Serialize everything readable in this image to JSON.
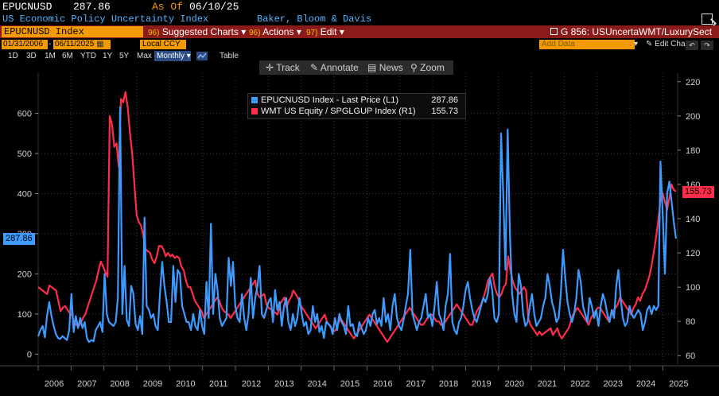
{
  "header": {
    "ticker": "EPUCNUSD",
    "last_price": "287.86",
    "as_of_label": "As Of",
    "as_of_date": "06/10/25",
    "title": "US Economic Policy Uncertainty Index",
    "source": "Baker, Bloom & Davis"
  },
  "menubar": {
    "security": "EPUCNUSD Index",
    "suggested": "Suggested Charts",
    "suggested_num": "96)",
    "actions": "Actions",
    "actions_num": "96)",
    "edit": "Edit",
    "edit_num": "97)",
    "chart_id": "G 856: USUncertaWMT/LuxurySect"
  },
  "datebar": {
    "start_date": "01/31/2006",
    "end_date": "06/11/2025",
    "currency": "Local CCY",
    "add_data": "Add Data",
    "edit_chart": "Edit Chart"
  },
  "ranges": [
    "1D",
    "3D",
    "1M",
    "6M",
    "YTD",
    "1Y",
    "5Y",
    "Max"
  ],
  "frequency": "Monthly",
  "table_label": "Table",
  "toolbar": {
    "track": "Track",
    "annotate": "Annotate",
    "news": "News",
    "zoom": "Zoom"
  },
  "colors": {
    "series1": "#3d9bff",
    "series2": "#ff2d4a",
    "accent": "#f39a00",
    "menubar": "#8b1a1a"
  },
  "legend": {
    "series1_label": "EPUCNUSD Index - Last Price (L1)",
    "series1_value": "287.86",
    "series2_label": "WMT US Equity / SPGLGUP Index (R1)",
    "series2_value": "155.73"
  },
  "chart_data": {
    "type": "line",
    "x_start": 2006.0,
    "x_end": 2025.45,
    "x_ticks": [
      "2006",
      "2007",
      "2008",
      "2009",
      "2010",
      "2011",
      "2012",
      "2013",
      "2014",
      "2015",
      "2016",
      "2017",
      "2018",
      "2019",
      "2020",
      "2021",
      "2022",
      "2023",
      "2024",
      "2025"
    ],
    "left_axis": {
      "ylim": [
        -25,
        700
      ],
      "ticks": [
        "0",
        "100",
        "200",
        "300",
        "400",
        "500",
        "600"
      ],
      "last_label": "287.86"
    },
    "right_axis": {
      "ylim": [
        55,
        225
      ],
      "ticks": [
        "60",
        "80",
        "100",
        "120",
        "140",
        "160",
        "180",
        "200",
        "220"
      ],
      "last_label": "155.73"
    },
    "series": [
      {
        "name": "EPUCNUSD Index - Last Price (L1)",
        "axis": "left",
        "values": [
          45,
          60,
          70,
          42,
          95,
          130,
          95,
          70,
          50,
          40,
          38,
          45,
          40,
          35,
          60,
          150,
          55,
          95,
          65,
          90,
          65,
          80,
          40,
          30,
          35,
          32,
          60,
          70,
          80,
          55,
          200,
          100,
          80,
          75,
          70,
          80,
          140,
          615,
          100,
          220,
          85,
          70,
          170,
          150,
          75,
          60,
          95,
          50,
          340,
          120,
          110,
          90,
          100,
          70,
          60,
          150,
          230,
          170,
          130,
          80,
          80,
          220,
          130,
          210,
          200,
          120,
          100,
          80,
          80,
          60,
          100,
          70,
          60,
          110,
          70,
          50,
          180,
          90,
          325,
          100,
          200,
          160,
          90,
          70,
          80,
          90,
          240,
          170,
          230,
          120,
          90,
          80,
          150,
          90,
          60,
          100,
          190,
          90,
          140,
          170,
          220,
          100,
          90,
          110,
          130,
          140,
          80,
          160,
          110,
          130,
          70,
          120,
          140,
          80,
          60,
          100,
          70,
          90,
          140,
          100,
          70,
          80,
          50,
          60,
          120,
          80,
          100,
          55,
          70,
          40,
          80,
          75,
          70,
          50,
          90,
          60,
          100,
          80,
          70,
          50,
          120,
          70,
          75,
          50,
          45,
          80,
          65,
          50,
          60,
          90,
          70,
          100,
          110,
          75,
          90,
          70,
          140,
          80,
          100,
          60,
          120,
          150,
          90,
          70,
          60,
          85,
          120,
          150,
          260,
          100,
          80,
          60,
          80,
          90,
          120,
          150,
          90,
          100,
          70,
          120,
          180,
          100,
          85,
          60,
          120,
          150,
          250,
          80,
          60,
          50,
          80,
          90,
          120,
          160,
          180,
          140,
          110,
          90,
          80,
          100,
          120,
          140,
          130,
          150,
          190,
          160,
          90,
          80,
          100,
          550,
          400,
          210,
          560,
          300,
          150,
          100,
          80,
          200,
          170,
          100,
          70,
          80,
          120,
          150,
          100,
          70,
          80,
          90,
          120,
          140,
          200,
          170,
          130,
          110,
          80,
          90,
          150,
          260,
          190,
          130,
          100,
          80,
          100,
          140,
          210,
          180,
          120,
          100,
          80,
          140,
          120,
          90,
          110,
          70,
          120,
          150,
          130,
          100,
          80,
          110,
          90,
          170,
          210,
          140,
          90,
          70,
          80,
          120,
          100,
          90,
          100,
          110,
          100,
          60,
          80,
          110,
          120,
          100,
          120,
          110,
          120,
          480,
          350,
          200,
          400,
          430,
          380,
          330,
          287.86
        ]
      },
      {
        "name": "WMT US Equity / SPGLGUP Index (R1)",
        "axis": "right",
        "values": [
          100,
          99,
          98,
          97,
          96,
          101,
          100,
          99,
          98,
          92,
          86,
          88,
          89,
          87,
          85,
          84,
          80,
          78,
          77,
          79,
          82,
          84,
          88,
          92,
          96,
          100,
          104,
          110,
          115,
          112,
          109,
          106,
          200,
          195,
          182,
          184,
          170,
          210,
          208,
          214,
          205,
          190,
          178,
          160,
          142,
          138,
          136,
          130,
          122,
          121,
          120,
          116,
          114,
          118,
          124,
          124,
          122,
          118,
          120,
          118,
          119,
          117,
          118,
          117,
          112,
          110,
          104,
          100,
          100,
          96,
          92,
          90,
          88,
          86,
          82,
          84,
          86,
          88,
          90,
          92,
          94,
          92,
          88,
          86,
          85,
          84,
          82,
          84,
          86,
          88,
          90,
          92,
          94,
          96,
          98,
          100,
          102,
          104,
          96,
          94,
          95,
          96,
          90,
          88,
          87,
          86,
          85,
          84,
          90,
          92,
          94,
          88,
          92,
          94,
          98,
          96,
          94,
          90,
          88,
          86,
          84,
          82,
          80,
          78,
          76,
          78,
          80,
          82,
          84,
          80,
          78,
          76,
          74,
          75,
          78,
          82,
          80,
          78,
          76,
          74,
          72,
          70,
          72,
          74,
          76,
          78,
          80,
          82,
          84,
          82,
          80,
          78,
          76,
          74,
          72,
          70,
          68,
          70,
          72,
          74,
          76,
          78,
          80,
          82,
          84,
          86,
          88,
          86,
          84,
          82,
          80,
          78,
          78,
          80,
          82,
          84,
          84,
          82,
          80,
          80,
          78,
          78,
          80,
          82,
          84,
          86,
          88,
          90,
          88,
          86,
          84,
          82,
          80,
          78,
          78,
          82,
          86,
          88,
          90,
          94,
          98,
          104,
          106,
          108,
          100,
          96,
          94,
          96,
          100,
          102,
          118,
          110,
          104,
          100,
          98,
          96,
          98,
          100,
          98,
          82,
          78,
          76,
          74,
          72,
          74,
          72,
          73,
          74,
          75,
          76,
          72,
          74,
          76,
          72,
          70,
          72,
          74,
          76,
          80,
          84,
          86,
          88,
          86,
          84,
          82,
          80,
          78,
          82,
          84,
          86,
          88,
          88,
          86,
          84,
          82,
          80,
          84,
          86,
          88,
          90,
          94,
          92,
          90,
          88,
          86,
          84,
          88,
          90,
          94,
          92,
          96,
          98,
          102,
          106,
          112,
          120,
          128,
          138,
          150,
          155,
          150,
          145,
          152,
          160,
          157,
          155.73
        ]
      }
    ]
  }
}
